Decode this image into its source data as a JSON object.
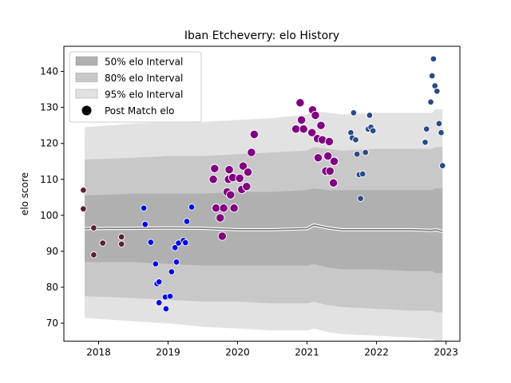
{
  "chart_data": {
    "type": "scatter",
    "title": "Iban Etcheverry: elo History",
    "xlabel": "",
    "ylabel": "elo score",
    "xlim": [
      2017.5,
      2023.2
    ],
    "ylim": [
      65,
      147
    ],
    "x_ticks": [
      2018,
      2019,
      2020,
      2021,
      2022,
      2023
    ],
    "y_ticks": [
      70,
      80,
      90,
      100,
      110,
      120,
      130,
      140
    ],
    "grid": false,
    "legend_position": "upper-left",
    "legend": [
      {
        "label": "50% elo Interval",
        "kind": "band",
        "color": "#b0b0b0"
      },
      {
        "label": "80% elo Interval",
        "kind": "band",
        "color": "#c8c8c8"
      },
      {
        "label": "95% elo Interval",
        "kind": "band",
        "color": "#e2e2e2"
      },
      {
        "label": "Post Match elo",
        "kind": "marker",
        "color": "#000000"
      }
    ],
    "intervals": {
      "x": [
        2017.8,
        2018.5,
        2019.0,
        2019.5,
        2020.0,
        2020.5,
        2021.0,
        2021.1,
        2021.3,
        2021.5,
        2022.0,
        2022.5,
        2022.8,
        2022.85,
        2022.95
      ],
      "p95_high": [
        124.5,
        125.5,
        126.0,
        126.0,
        126.5,
        127.0,
        128.0,
        129.0,
        128.5,
        128.0,
        128.5,
        128.5,
        128.5,
        129.5,
        129.5
      ],
      "p80_high": [
        115.5,
        116.0,
        116.5,
        116.5,
        117.0,
        117.5,
        118.0,
        119.0,
        118.5,
        118.0,
        118.5,
        118.5,
        118.5,
        119.0,
        119.0
      ],
      "p50_high": [
        105.5,
        106.0,
        106.0,
        106.0,
        106.5,
        106.5,
        107.0,
        107.5,
        107.0,
        107.0,
        107.0,
        107.0,
        107.0,
        107.5,
        107.5
      ],
      "median": [
        96.3,
        96.4,
        96.5,
        96.4,
        96.0,
        96.0,
        96.3,
        97.3,
        96.5,
        96.0,
        96.0,
        96.0,
        95.8,
        96.0,
        95.5
      ],
      "p50_low": [
        87.0,
        87.0,
        86.5,
        86.0,
        86.0,
        86.0,
        86.0,
        86.5,
        85.5,
        85.0,
        85.0,
        84.5,
        84.5,
        84.0,
        84.0
      ],
      "p80_low": [
        77.5,
        77.0,
        76.5,
        76.0,
        76.0,
        75.5,
        75.5,
        76.0,
        75.0,
        74.5,
        74.0,
        73.5,
        73.5,
        73.0,
        73.0
      ],
      "p95_low": [
        71.5,
        70.5,
        70.0,
        69.0,
        68.5,
        68.0,
        68.0,
        68.5,
        67.5,
        67.0,
        66.5,
        66.0,
        65.5,
        65.0,
        65.0
      ]
    },
    "series": [
      {
        "color": "#5c1f2e",
        "size": "small",
        "points": [
          [
            2017.78,
            107.0
          ],
          [
            2017.78,
            101.8
          ],
          [
            2017.93,
            96.5
          ],
          [
            2017.93,
            89.0
          ],
          [
            2018.06,
            92.3
          ],
          [
            2018.33,
            94.0
          ],
          [
            2018.33,
            92.0
          ]
        ]
      },
      {
        "color": "#0000ee",
        "size": "small",
        "points": [
          [
            2018.65,
            102.0
          ],
          [
            2018.67,
            97.5
          ],
          [
            2018.75,
            92.5
          ],
          [
            2018.82,
            86.5
          ],
          [
            2018.84,
            81.0
          ],
          [
            2018.87,
            75.7
          ],
          [
            2018.87,
            81.5
          ],
          [
            2018.96,
            77.3
          ],
          [
            2018.97,
            74.0
          ],
          [
            2019.03,
            77.5
          ],
          [
            2019.05,
            84.3
          ],
          [
            2019.1,
            91.0
          ],
          [
            2019.12,
            87.0
          ],
          [
            2019.15,
            92.3
          ],
          [
            2019.22,
            93.0
          ],
          [
            2019.25,
            92.4
          ],
          [
            2019.27,
            98.3
          ],
          [
            2019.34,
            102.3
          ]
        ]
      },
      {
        "color": "#800080",
        "size": "large",
        "points": [
          [
            2019.65,
            110.0
          ],
          [
            2019.67,
            113.0
          ],
          [
            2019.69,
            102.0
          ],
          [
            2019.75,
            99.3
          ],
          [
            2019.78,
            94.2
          ],
          [
            2019.8,
            102.0
          ],
          [
            2019.85,
            106.5
          ],
          [
            2019.87,
            110.0
          ],
          [
            2019.88,
            112.7
          ],
          [
            2019.9,
            105.7
          ],
          [
            2019.93,
            110.5
          ],
          [
            2019.95,
            102.0
          ],
          [
            2020.03,
            110.3
          ],
          [
            2020.06,
            107.2
          ],
          [
            2020.08,
            113.7
          ],
          [
            2020.13,
            108.0
          ],
          [
            2020.15,
            112.0
          ],
          [
            2020.2,
            117.5
          ],
          [
            2020.24,
            122.5
          ]
        ]
      },
      {
        "color": "#800080",
        "size": "large",
        "points": [
          [
            2020.84,
            124.0
          ],
          [
            2020.9,
            131.3
          ],
          [
            2020.92,
            126.5
          ],
          [
            2020.95,
            124.0
          ],
          [
            2021.07,
            123.0
          ],
          [
            2021.08,
            129.3
          ],
          [
            2021.12,
            127.8
          ],
          [
            2021.15,
            121.3
          ],
          [
            2021.16,
            116.0
          ],
          [
            2021.2,
            125.0
          ],
          [
            2021.22,
            121.0
          ],
          [
            2021.27,
            112.3
          ],
          [
            2021.3,
            116.5
          ],
          [
            2021.32,
            120.5
          ],
          [
            2021.33,
            112.3
          ],
          [
            2021.38,
            109.0
          ],
          [
            2021.39,
            115.0
          ]
        ]
      },
      {
        "color": "#2a4a8a",
        "size": "small",
        "points": [
          [
            2021.63,
            123.0
          ],
          [
            2021.65,
            121.5
          ],
          [
            2021.67,
            128.5
          ],
          [
            2021.7,
            121.0
          ],
          [
            2021.72,
            117.0
          ],
          [
            2021.75,
            111.3
          ],
          [
            2021.77,
            104.7
          ],
          [
            2021.8,
            111.5
          ],
          [
            2021.84,
            117.5
          ],
          [
            2021.88,
            124.0
          ],
          [
            2021.9,
            127.8
          ],
          [
            2021.92,
            124.5
          ],
          [
            2021.95,
            123.5
          ]
        ]
      },
      {
        "color": "#2a4a8a",
        "size": "small",
        "points": [
          [
            2022.7,
            120.3
          ],
          [
            2022.72,
            124.0
          ],
          [
            2022.78,
            131.5
          ],
          [
            2022.8,
            138.8
          ],
          [
            2022.82,
            143.5
          ],
          [
            2022.84,
            136.0
          ],
          [
            2022.87,
            134.5
          ],
          [
            2022.9,
            125.5
          ],
          [
            2022.93,
            123.0
          ],
          [
            2022.95,
            113.8
          ]
        ]
      }
    ]
  }
}
